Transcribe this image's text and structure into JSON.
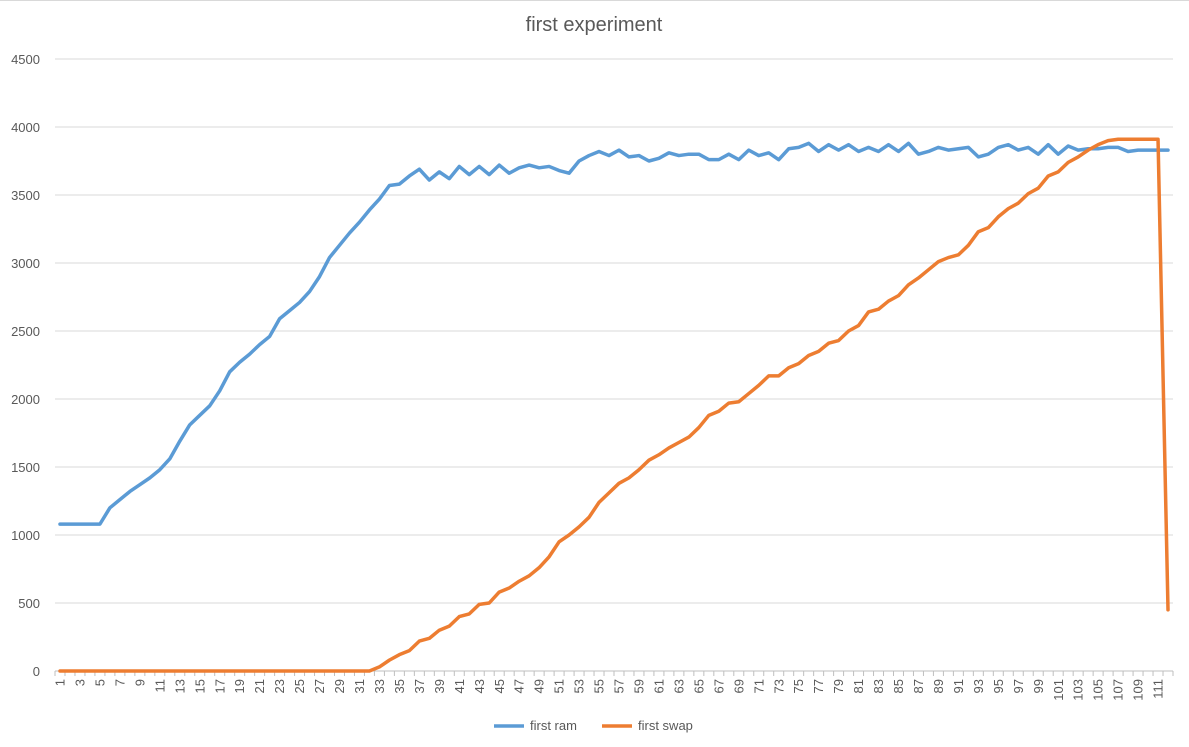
{
  "chart_data": {
    "type": "line",
    "title": "first experiment",
    "xlabel": "",
    "ylabel": "",
    "ylim": [
      0,
      4500
    ],
    "yticks": [
      0,
      500,
      1000,
      1500,
      2000,
      2500,
      3000,
      3500,
      4000,
      4500
    ],
    "grid": true,
    "legend_position": "bottom",
    "x": [
      1,
      2,
      3,
      4,
      5,
      6,
      7,
      8,
      9,
      10,
      11,
      12,
      13,
      14,
      15,
      16,
      17,
      18,
      19,
      20,
      21,
      22,
      23,
      24,
      25,
      26,
      27,
      28,
      29,
      30,
      31,
      32,
      33,
      34,
      35,
      36,
      37,
      38,
      39,
      40,
      41,
      42,
      43,
      44,
      45,
      46,
      47,
      48,
      49,
      50,
      51,
      52,
      53,
      54,
      55,
      56,
      57,
      58,
      59,
      60,
      61,
      62,
      63,
      64,
      65,
      66,
      67,
      68,
      69,
      70,
      71,
      72,
      73,
      74,
      75,
      76,
      77,
      78,
      79,
      80,
      81,
      82,
      83,
      84,
      85,
      86,
      87,
      88,
      89,
      90,
      91,
      92,
      93,
      94,
      95,
      96,
      97,
      98,
      99,
      100,
      101,
      102,
      103,
      104,
      105,
      106,
      107,
      108,
      109,
      110,
      111,
      112
    ],
    "x_tick_labels": [
      "1",
      "3",
      "5",
      "7",
      "9",
      "11",
      "13",
      "15",
      "17",
      "19",
      "21",
      "23",
      "25",
      "27",
      "29",
      "31",
      "33",
      "35",
      "37",
      "39",
      "41",
      "43",
      "45",
      "47",
      "49",
      "51",
      "53",
      "55",
      "57",
      "59",
      "61",
      "63",
      "65",
      "67",
      "69",
      "71",
      "73",
      "75",
      "77",
      "79",
      "81",
      "83",
      "85",
      "87",
      "89",
      "91",
      "93",
      "95",
      "97",
      "99",
      "101",
      "103",
      "105",
      "107",
      "109",
      "111"
    ],
    "series": [
      {
        "name": "first ram",
        "color": "#5B9BD5",
        "values": [
          1080,
          1080,
          1080,
          1080,
          1080,
          1200,
          1260,
          1320,
          1370,
          1420,
          1480,
          1560,
          1690,
          1810,
          1880,
          1950,
          2060,
          2200,
          2270,
          2330,
          2400,
          2460,
          2590,
          2650,
          2710,
          2790,
          2900,
          3040,
          3130,
          3220,
          3300,
          3390,
          3470,
          3570,
          3580,
          3640,
          3690,
          3610,
          3670,
          3620,
          3710,
          3650,
          3710,
          3650,
          3720,
          3660,
          3700,
          3720,
          3700,
          3710,
          3680,
          3660,
          3750,
          3790,
          3820,
          3790,
          3830,
          3780,
          3790,
          3750,
          3770,
          3810,
          3790,
          3800,
          3800,
          3760,
          3760,
          3800,
          3760,
          3830,
          3790,
          3810,
          3760,
          3840,
          3850,
          3880,
          3820,
          3870,
          3830,
          3870,
          3820,
          3850,
          3820,
          3870,
          3820,
          3880,
          3800,
          3820,
          3850,
          3830,
          3840,
          3850,
          3780,
          3800,
          3850,
          3870,
          3830,
          3850,
          3800,
          3870,
          3800,
          3860,
          3830,
          3840,
          3840,
          3850,
          3850,
          3820,
          3830,
          3830,
          3830,
          3830
        ]
      },
      {
        "name": "first swap",
        "color": "#ED7D31",
        "values": [
          0,
          0,
          0,
          0,
          0,
          0,
          0,
          0,
          0,
          0,
          0,
          0,
          0,
          0,
          0,
          0,
          0,
          0,
          0,
          0,
          0,
          0,
          0,
          0,
          0,
          0,
          0,
          0,
          0,
          0,
          0,
          0,
          30,
          80,
          120,
          150,
          220,
          240,
          300,
          330,
          400,
          420,
          490,
          500,
          580,
          610,
          660,
          700,
          760,
          840,
          950,
          1000,
          1060,
          1130,
          1240,
          1310,
          1380,
          1420,
          1480,
          1550,
          1590,
          1640,
          1680,
          1720,
          1790,
          1880,
          1910,
          1970,
          1980,
          2040,
          2100,
          2170,
          2170,
          2230,
          2260,
          2320,
          2350,
          2410,
          2430,
          2500,
          2540,
          2640,
          2660,
          2720,
          2760,
          2840,
          2890,
          2950,
          3010,
          3040,
          3060,
          3130,
          3230,
          3260,
          3340,
          3400,
          3440,
          3510,
          3550,
          3640,
          3670,
          3740,
          3780,
          3830,
          3870,
          3900,
          3910,
          3910,
          3910,
          3910,
          3910,
          450
        ]
      }
    ]
  }
}
